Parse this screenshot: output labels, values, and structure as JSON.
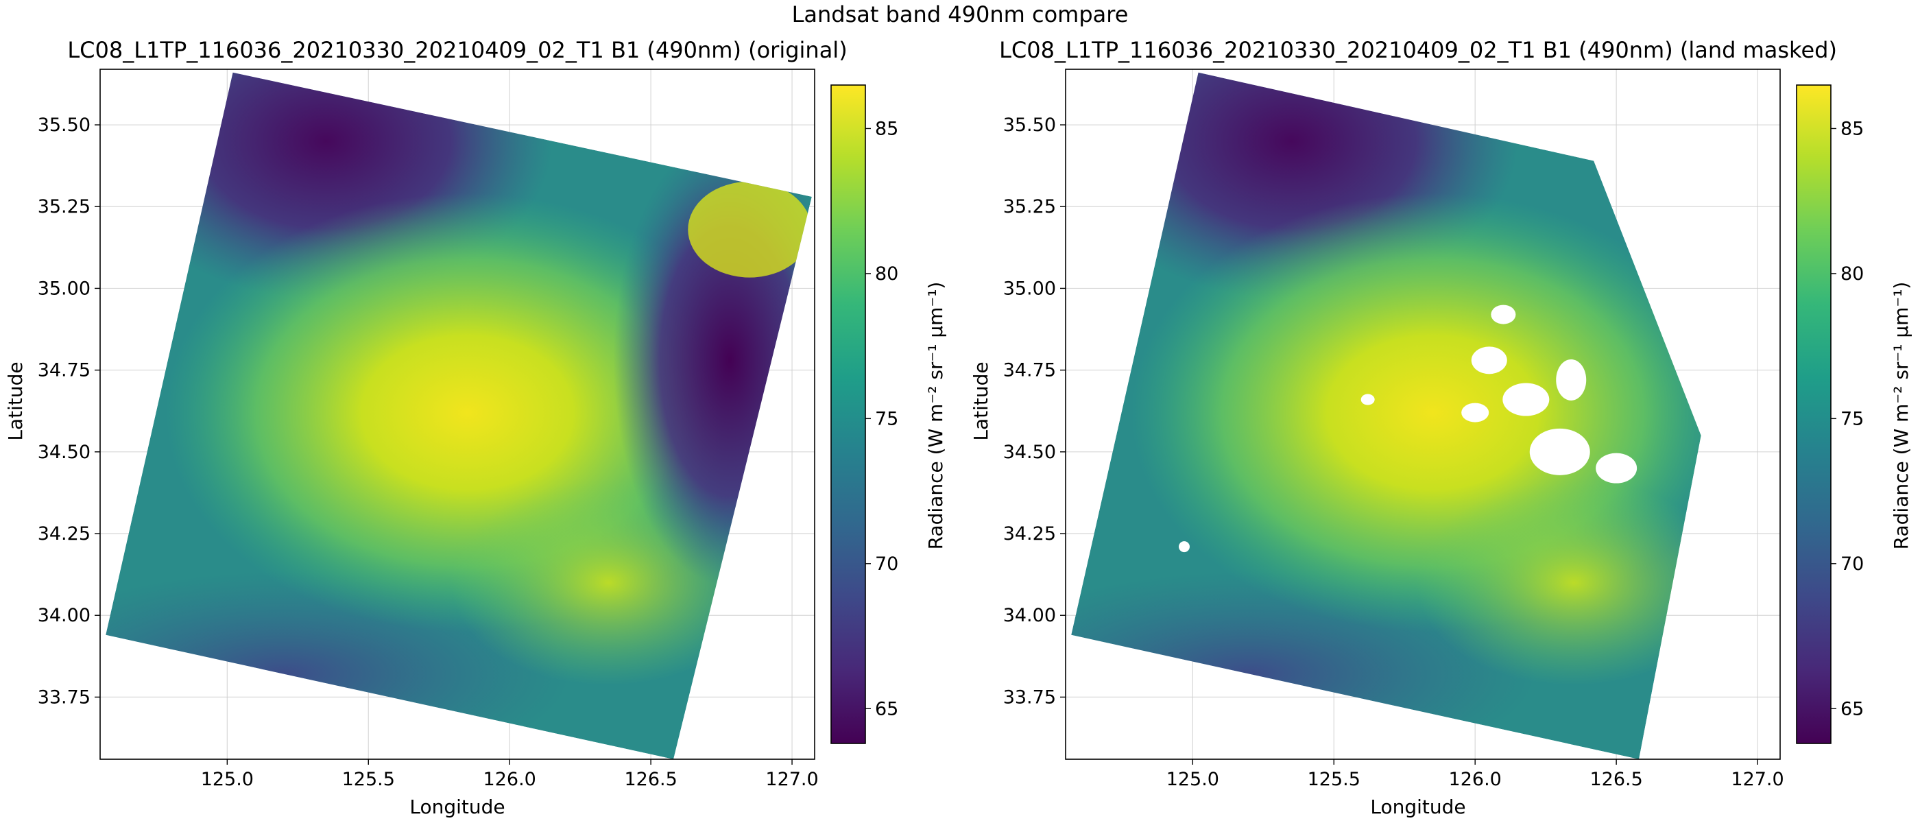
{
  "figure": {
    "suptitle": "Landsat band 490nm compare"
  },
  "colors": {
    "viridis": [
      "#440154",
      "#482878",
      "#3e4989",
      "#31688e",
      "#26828e",
      "#1f9e89",
      "#35b779",
      "#6ece58",
      "#b5de2b",
      "#fde725"
    ]
  },
  "chart_data": [
    {
      "type": "heatmap",
      "title": "LC08_L1TP_116036_20210330_20210409_02_T1 B1 (490nm) (original)",
      "xlabel": "Longitude",
      "ylabel": "Latitude",
      "xlim": [
        124.55,
        127.08
      ],
      "ylim": [
        33.56,
        35.67
      ],
      "xticks": [
        125.0,
        125.5,
        126.0,
        126.5,
        127.0
      ],
      "xtick_labels": [
        "125.0",
        "125.5",
        "126.0",
        "126.5",
        "127.0"
      ],
      "yticks": [
        33.75,
        34.0,
        34.25,
        34.5,
        34.75,
        35.0,
        35.25,
        35.5
      ],
      "ytick_labels": [
        "33.75",
        "34.00",
        "34.25",
        "34.50",
        "34.75",
        "35.00",
        "35.25",
        "35.50"
      ],
      "grid": true,
      "scene_footprint": [
        [
          125.02,
          35.66
        ],
        [
          127.07,
          35.28
        ],
        [
          126.58,
          33.56
        ],
        [
          124.57,
          33.94
        ]
      ],
      "colormap": "viridis",
      "colorbar": {
        "label": "Radiance (W m⁻² sr⁻¹ μm⁻¹)",
        "range": [
          63.8,
          86.5
        ],
        "ticks": [
          65,
          70,
          75,
          80,
          85
        ],
        "tick_labels": [
          "65",
          "70",
          "75",
          "80",
          "85"
        ]
      },
      "land_masked": false
    },
    {
      "type": "heatmap",
      "title": "LC08_L1TP_116036_20210330_20210409_02_T1 B1 (490nm) (land masked)",
      "xlabel": "Longitude",
      "ylabel": "Latitude",
      "xlim": [
        124.55,
        127.08
      ],
      "ylim": [
        33.56,
        35.67
      ],
      "xticks": [
        125.0,
        125.5,
        126.0,
        126.5,
        127.0
      ],
      "xtick_labels": [
        "125.0",
        "125.5",
        "126.0",
        "126.5",
        "127.0"
      ],
      "yticks": [
        33.75,
        34.0,
        34.25,
        34.5,
        34.75,
        35.0,
        35.25,
        35.5
      ],
      "ytick_labels": [
        "33.75",
        "34.00",
        "34.25",
        "34.50",
        "34.75",
        "35.00",
        "35.25",
        "35.50"
      ],
      "grid": true,
      "scene_footprint": [
        [
          125.02,
          35.66
        ],
        [
          126.42,
          35.39
        ],
        [
          126.8,
          34.55
        ],
        [
          126.58,
          33.56
        ],
        [
          124.57,
          33.94
        ]
      ],
      "colormap": "viridis",
      "colorbar": {
        "label": "Radiance (W m⁻² sr⁻¹ μm⁻¹)",
        "range": [
          63.8,
          86.5
        ],
        "ticks": [
          65,
          70,
          75,
          80,
          85
        ],
        "tick_labels": [
          "65",
          "70",
          "75",
          "80",
          "85"
        ]
      },
      "land_masked": true
    }
  ]
}
